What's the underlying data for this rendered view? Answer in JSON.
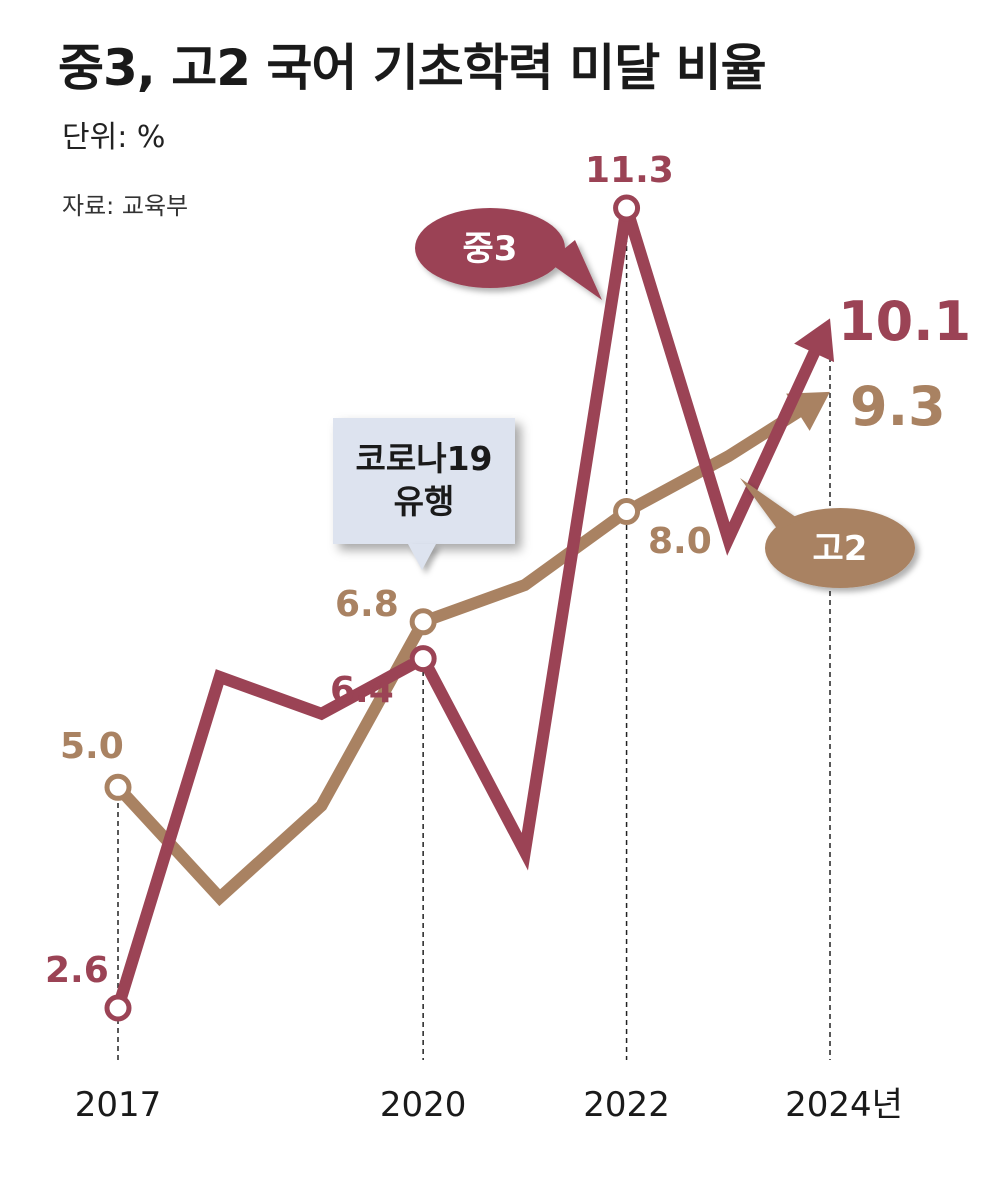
{
  "header": {
    "title": "중3, 고2 국어 기초학력 미달 비율",
    "unit": "단위: %",
    "source": "자료: 교육부"
  },
  "annotation": {
    "line1": "코로나19",
    "line2": "유행"
  },
  "colors": {
    "middle": "#9b4355",
    "high": "#a98262",
    "callout_bg": "#dde3ef"
  },
  "chart_data": {
    "type": "line",
    "x": [
      2017,
      2018,
      2019,
      2020,
      2021,
      2022,
      2023,
      2024
    ],
    "x_tick_labels": [
      "2017",
      "2020",
      "2022",
      "2024년"
    ],
    "x_tick_values": [
      2017,
      2020,
      2022,
      2024
    ],
    "series": [
      {
        "name": "중3",
        "values": [
          2.6,
          6.2,
          5.8,
          6.4,
          4.3,
          11.3,
          7.7,
          10.1
        ],
        "labels": {
          "2017": "2.6",
          "2020": "6.4",
          "2022": "11.3",
          "2024": "10.1"
        }
      },
      {
        "name": "고2",
        "values": [
          5.0,
          3.8,
          4.8,
          6.8,
          7.2,
          8.0,
          8.6,
          9.3
        ],
        "labels": {
          "2017": "5.0",
          "2020": "6.8",
          "2022": "8.0",
          "2024": "9.3"
        }
      }
    ],
    "title": "중3, 고2 국어 기초학력 미달 비율",
    "xlabel": "",
    "ylabel": "",
    "ylim": [
      2.6,
      11.3
    ],
    "grid": false,
    "legend": "callouts on lines"
  }
}
